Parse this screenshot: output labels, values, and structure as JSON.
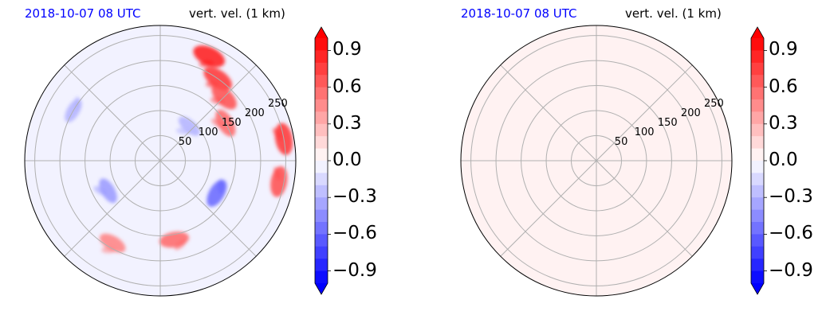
{
  "colors": {
    "positive": "#ff0000",
    "negative": "#0000ff",
    "neutral": "#ffffff",
    "left_title_color": "#0000ff",
    "grid": "#b0b0b0"
  },
  "chart_data": [
    {
      "type": "heatmap",
      "projection": "polar",
      "title_left": "2018-10-07 08 UTC",
      "title_right": "vert. vel. (1 km)",
      "radial_ticks": [
        50,
        100,
        150,
        200,
        250
      ],
      "radial_max": 270,
      "angular_grid_deg": [
        0,
        45,
        90,
        135,
        180,
        225,
        270,
        315
      ],
      "colorbar": {
        "vmin": -1.0,
        "vmax": 1.0,
        "step": 0.1,
        "extend": "both",
        "tick_values": [
          -0.9,
          -0.6,
          -0.3,
          0.0,
          0.3,
          0.6,
          0.9
        ],
        "tick_labels": [
          "−0.9",
          "−0.6",
          "−0.3",
          "0.0",
          "0.3",
          "0.6",
          "0.9"
        ]
      },
      "field": "mixed",
      "features": [
        {
          "azimuth_deg": 25,
          "range": 230,
          "value": 0.9
        },
        {
          "azimuth_deg": 35,
          "range": 200,
          "value": 0.8
        },
        {
          "azimuth_deg": 45,
          "range": 180,
          "value": 0.7
        },
        {
          "azimuth_deg": 60,
          "range": 150,
          "value": 0.6
        },
        {
          "azimuth_deg": 80,
          "range": 250,
          "value": 0.8
        },
        {
          "azimuth_deg": 100,
          "range": 240,
          "value": 0.7
        },
        {
          "azimuth_deg": 120,
          "range": 130,
          "value": -0.6
        },
        {
          "azimuth_deg": 170,
          "range": 160,
          "value": 0.6
        },
        {
          "azimuth_deg": 210,
          "range": 190,
          "value": 0.5
        },
        {
          "azimuth_deg": 240,
          "range": 120,
          "value": -0.4
        },
        {
          "azimuth_deg": 300,
          "range": 200,
          "value": -0.3
        },
        {
          "azimuth_deg": 40,
          "range": 90,
          "value": -0.3
        }
      ]
    },
    {
      "type": "heatmap",
      "projection": "polar",
      "title_left": "2018-10-07 08 UTC",
      "title_right": "vert. vel. (1 km)",
      "radial_ticks": [
        50,
        100,
        150,
        200,
        250
      ],
      "radial_max": 270,
      "angular_grid_deg": [
        0,
        45,
        90,
        135,
        180,
        225,
        270,
        315
      ],
      "colorbar": {
        "vmin": -1.0,
        "vmax": 1.0,
        "step": 0.1,
        "extend": "both",
        "tick_values": [
          -0.9,
          -0.6,
          -0.3,
          0.0,
          0.3,
          0.6,
          0.9
        ],
        "tick_labels": [
          "−0.9",
          "−0.6",
          "−0.3",
          "0.0",
          "0.3",
          "0.6",
          "0.9"
        ]
      },
      "field": "uniform",
      "uniform_value": 0.05,
      "features": []
    }
  ]
}
